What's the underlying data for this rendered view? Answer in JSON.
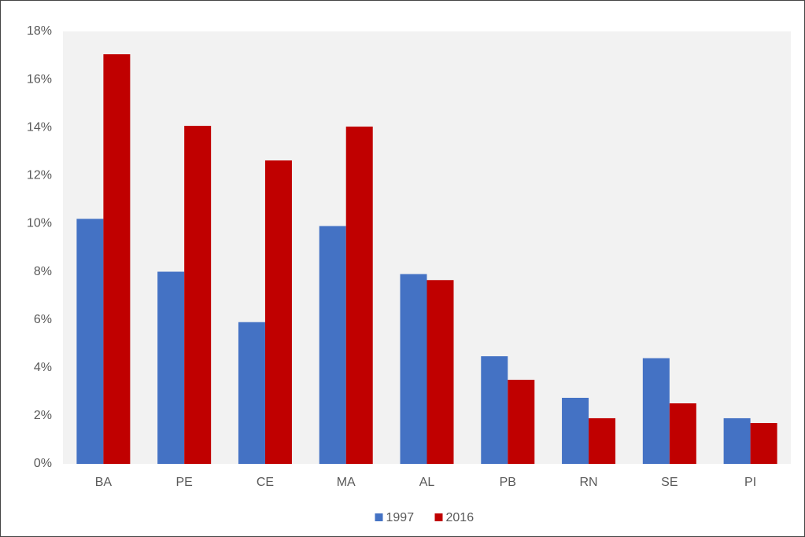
{
  "chart_data": {
    "type": "bar",
    "categories": [
      "BA",
      "PE",
      "CE",
      "MA",
      "AL",
      "PB",
      "RN",
      "SE",
      "PI"
    ],
    "series": [
      {
        "name": "1997",
        "color": "#4472c4",
        "values": [
          10.2,
          8.0,
          5.9,
          9.9,
          7.9,
          4.48,
          2.75,
          4.4,
          1.9
        ]
      },
      {
        "name": "2016",
        "color": "#c00000",
        "values": [
          17.05,
          14.07,
          12.63,
          14.04,
          7.65,
          3.5,
          1.9,
          2.52,
          1.7
        ]
      }
    ],
    "ylim": [
      0,
      18
    ],
    "yticks": [
      {
        "value": 0,
        "label": "0%"
      },
      {
        "value": 2,
        "label": "2%"
      },
      {
        "value": 4,
        "label": "4%"
      },
      {
        "value": 6,
        "label": "6%"
      },
      {
        "value": 8,
        "label": "8%"
      },
      {
        "value": 10,
        "label": "10%"
      },
      {
        "value": 12,
        "label": "12%"
      },
      {
        "value": 14,
        "label": "14%"
      },
      {
        "value": 16,
        "label": "16%"
      },
      {
        "value": 18,
        "label": "18%"
      }
    ],
    "grid": false,
    "legend": "bottom"
  }
}
